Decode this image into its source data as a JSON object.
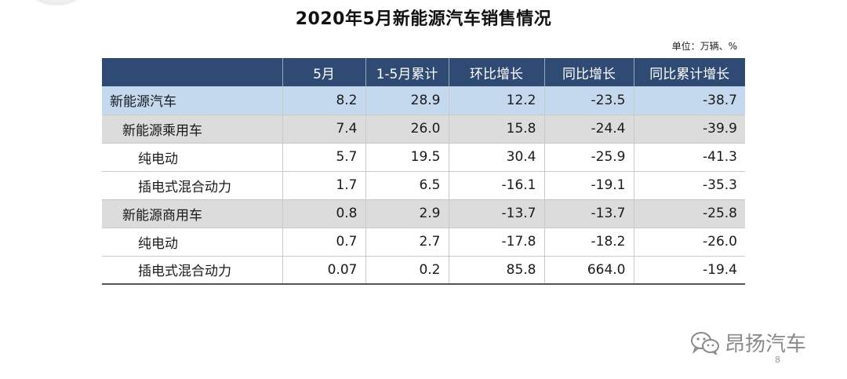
{
  "title": "2020年5月新能源汽车销售情况",
  "unit_note": "单位：万辆、%",
  "table": {
    "headers": [
      "",
      "5月",
      "1-5月累计",
      "环比增长",
      "同比增长",
      "同比累计增长"
    ],
    "rows": [
      {
        "level": 0,
        "cells": [
          "新能源汽车",
          "8.2",
          "28.9",
          "12.2",
          "-23.5",
          "-38.7"
        ]
      },
      {
        "level": 1,
        "cells": [
          "新能源乘用车",
          "7.4",
          "26.0",
          "15.8",
          "-24.4",
          "-39.9"
        ]
      },
      {
        "level": 2,
        "cells": [
          "纯电动",
          "5.7",
          "19.5",
          "30.4",
          "-25.9",
          "-41.3"
        ]
      },
      {
        "level": 2,
        "cells": [
          "插电式混合动力",
          "1.7",
          "6.5",
          "-16.1",
          "-19.1",
          "-35.3"
        ]
      },
      {
        "level": 1,
        "cells": [
          "新能源商用车",
          "0.8",
          "2.9",
          "-13.7",
          "-13.7",
          "-25.8"
        ]
      },
      {
        "level": 2,
        "cells": [
          "纯电动",
          "0.7",
          "2.7",
          "-17.8",
          "-18.2",
          "-26.0"
        ]
      },
      {
        "level": 2,
        "cells": [
          "插电式混合动力",
          "0.07",
          "0.2",
          "85.8",
          "664.0",
          "-19.4"
        ]
      }
    ]
  },
  "watermark": {
    "icon": "wechat-icon",
    "text": "昂扬汽车"
  },
  "page_number": "8",
  "colors": {
    "header_bg": "#2f4a73",
    "level0_bg": "#c5d9ee",
    "level1_bg": "#dcdcdc"
  }
}
